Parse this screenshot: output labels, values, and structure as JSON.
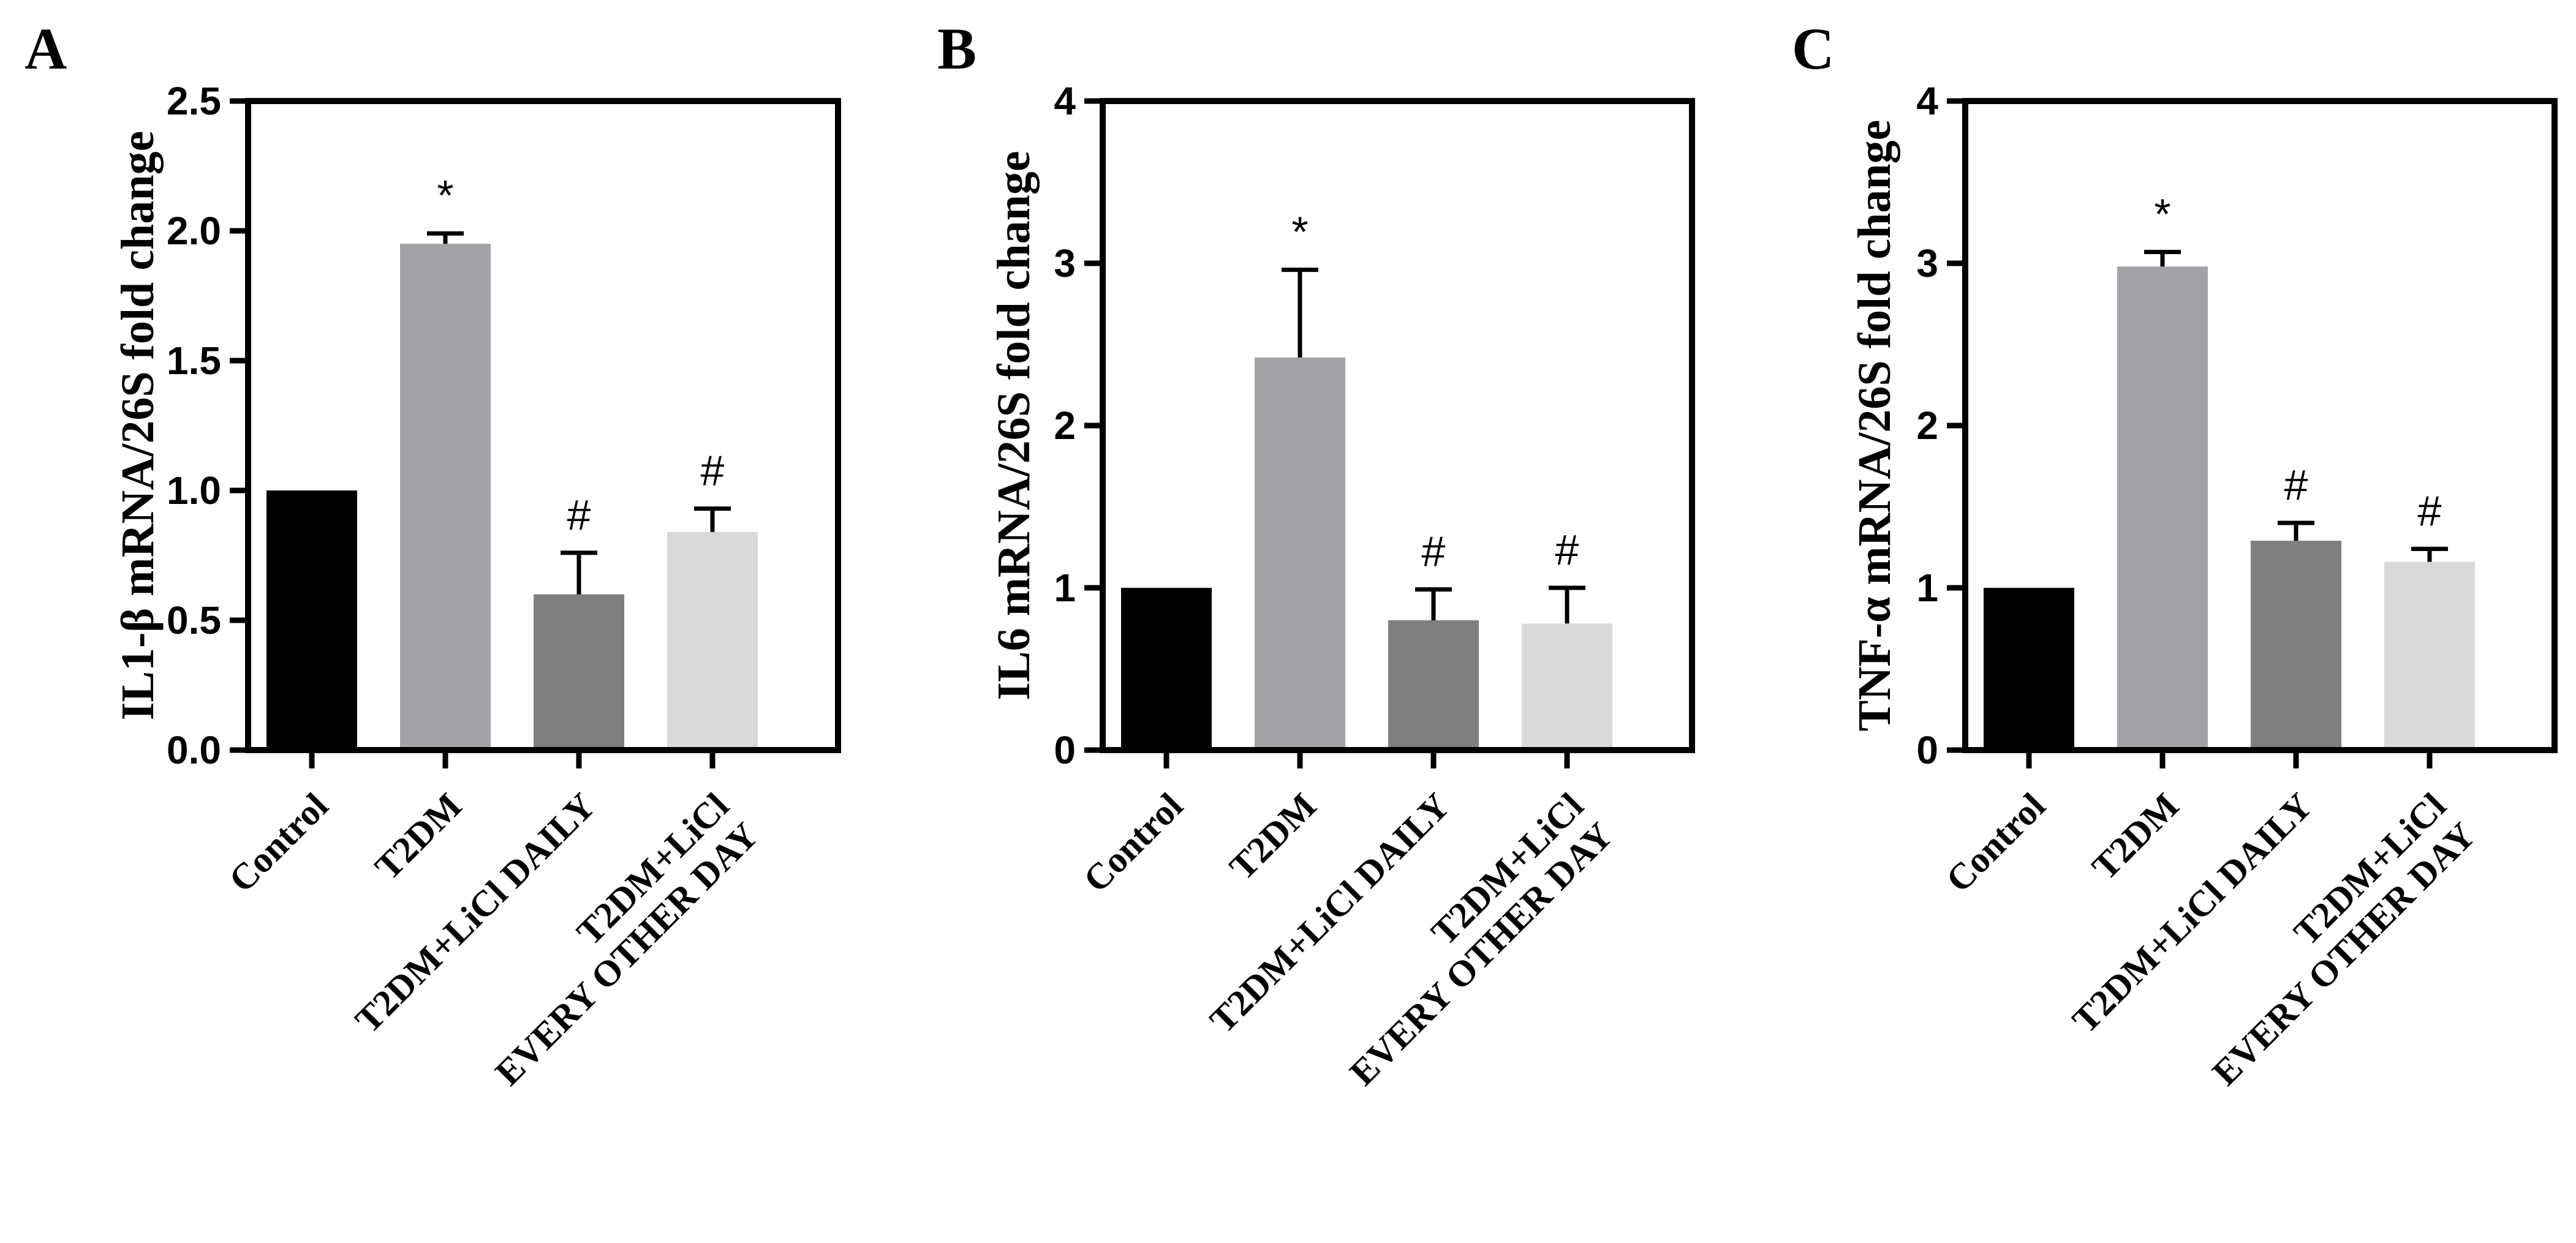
{
  "chart_data": [
    {
      "panel": "A",
      "type": "bar",
      "ylabel": "IL1-β mRNA/26S fold change",
      "ylim": [
        0,
        2.5
      ],
      "yticks": [
        "0.0",
        "0.5",
        "1.0",
        "1.5",
        "2.0",
        "2.5"
      ],
      "categories": [
        [
          "Control"
        ],
        [
          "T2DM"
        ],
        [
          "T2DM+LiCl DAILY"
        ],
        [
          "T2DM+LiCl",
          "EVERY OTHER DAY"
        ]
      ],
      "values": [
        1.0,
        1.95,
        0.6,
        0.84
      ],
      "errors": [
        0,
        0.04,
        0.16,
        0.09
      ],
      "annotations": [
        "",
        "*",
        "#",
        "#"
      ],
      "colors": [
        "#000000",
        "#a2a2a7",
        "#7f7f7f",
        "#d9d9d9"
      ]
    },
    {
      "panel": "B",
      "type": "bar",
      "ylabel": "IL6 mRNA/26S fold change",
      "ylim": [
        0,
        4
      ],
      "yticks": [
        "0",
        "1",
        "2",
        "3",
        "4"
      ],
      "categories": [
        [
          "Control"
        ],
        [
          "T2DM"
        ],
        [
          "T2DM+LiCl DAILY"
        ],
        [
          "T2DM+LiCl",
          "EVERY OTHER DAY"
        ]
      ],
      "values": [
        1.0,
        2.42,
        0.8,
        0.78
      ],
      "errors": [
        0,
        0.54,
        0.19,
        0.22
      ],
      "annotations": [
        "",
        "*",
        "#",
        "#"
      ],
      "colors": [
        "#000000",
        "#a2a2a7",
        "#7f7f7f",
        "#d9d9d9"
      ]
    },
    {
      "panel": "C",
      "type": "bar",
      "ylabel": "TNF-α mRNA/26S fold change",
      "ylim": [
        0,
        4
      ],
      "yticks": [
        "0",
        "1",
        "2",
        "3",
        "4"
      ],
      "categories": [
        [
          "Control"
        ],
        [
          "T2DM"
        ],
        [
          "T2DM+LiCl DAILY"
        ],
        [
          "T2DM+LiCl",
          "EVERY OTHER DAY"
        ]
      ],
      "values": [
        1.0,
        2.98,
        1.29,
        1.16
      ],
      "errors": [
        0,
        0.09,
        0.11,
        0.08
      ],
      "annotations": [
        "",
        "*",
        "#",
        "#"
      ],
      "colors": [
        "#000000",
        "#a2a2a7",
        "#7f7f7f",
        "#d9d9d9"
      ]
    }
  ]
}
